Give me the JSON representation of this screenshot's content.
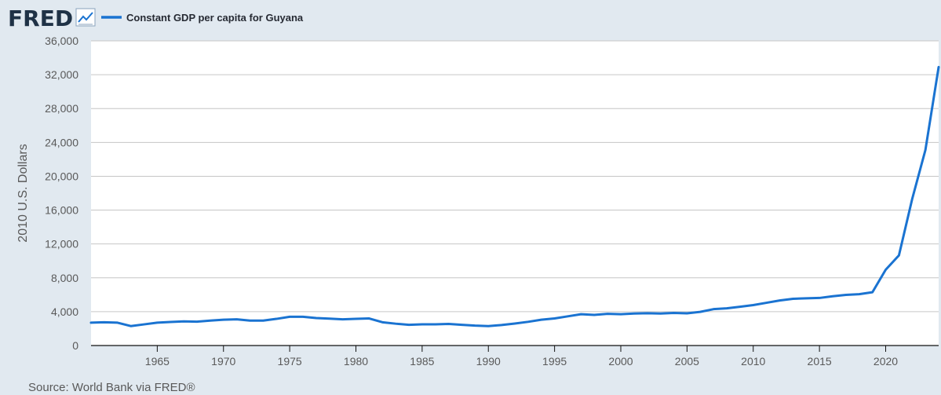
{
  "brand": {
    "name": "FRED",
    "icon": "trend-line-icon"
  },
  "colors": {
    "series": "#1a73d1",
    "background": "#e1e9f0",
    "plot": "#ffffff",
    "grid": "#c6c6c6"
  },
  "source_text": "Source: World Bank via FRED®",
  "chart_data": {
    "type": "line",
    "title": "",
    "xlabel": "",
    "ylabel": "2010 U.S. Dollars",
    "xlim": [
      1960,
      2024
    ],
    "ylim": [
      0,
      36000
    ],
    "grid": true,
    "legend_position": "top-left",
    "y_ticks": [
      0,
      4000,
      8000,
      12000,
      16000,
      20000,
      24000,
      28000,
      32000,
      36000
    ],
    "y_tick_labels": [
      "0",
      "4,000",
      "8,000",
      "12,000",
      "16,000",
      "20,000",
      "24,000",
      "28,000",
      "32,000",
      "36,000"
    ],
    "x_ticks": [
      1965,
      1970,
      1975,
      1980,
      1985,
      1990,
      1995,
      2000,
      2005,
      2010,
      2015,
      2020
    ],
    "x_tick_labels": [
      "1965",
      "1970",
      "1975",
      "1980",
      "1985",
      "1990",
      "1995",
      "2000",
      "2005",
      "2010",
      "2015",
      "2020"
    ],
    "series": [
      {
        "name": "Constant GDP per capita for Guyana",
        "x": [
          1960,
          1961,
          1962,
          1963,
          1964,
          1965,
          1966,
          1967,
          1968,
          1969,
          1970,
          1971,
          1972,
          1973,
          1974,
          1975,
          1976,
          1977,
          1978,
          1979,
          1980,
          1981,
          1982,
          1983,
          1984,
          1985,
          1986,
          1987,
          1988,
          1989,
          1990,
          1991,
          1992,
          1993,
          1994,
          1995,
          1996,
          1997,
          1998,
          1999,
          2000,
          2001,
          2002,
          2003,
          2004,
          2005,
          2006,
          2007,
          2008,
          2009,
          2010,
          2011,
          2012,
          2013,
          2014,
          2015,
          2016,
          2017,
          2018,
          2019,
          2020,
          2021,
          2022,
          2023,
          2024
        ],
        "values": [
          2700,
          2750,
          2700,
          2300,
          2500,
          2700,
          2780,
          2850,
          2820,
          2950,
          3050,
          3100,
          2950,
          2950,
          3150,
          3400,
          3400,
          3250,
          3180,
          3100,
          3150,
          3200,
          2750,
          2580,
          2450,
          2500,
          2500,
          2550,
          2450,
          2350,
          2300,
          2420,
          2600,
          2800,
          3050,
          3200,
          3450,
          3700,
          3620,
          3750,
          3700,
          3780,
          3820,
          3780,
          3850,
          3800,
          3980,
          4300,
          4400,
          4580,
          4780,
          5050,
          5320,
          5520,
          5580,
          5620,
          5820,
          5980,
          6070,
          6300,
          8950,
          10650,
          17300,
          23100,
          32900
        ]
      }
    ]
  }
}
